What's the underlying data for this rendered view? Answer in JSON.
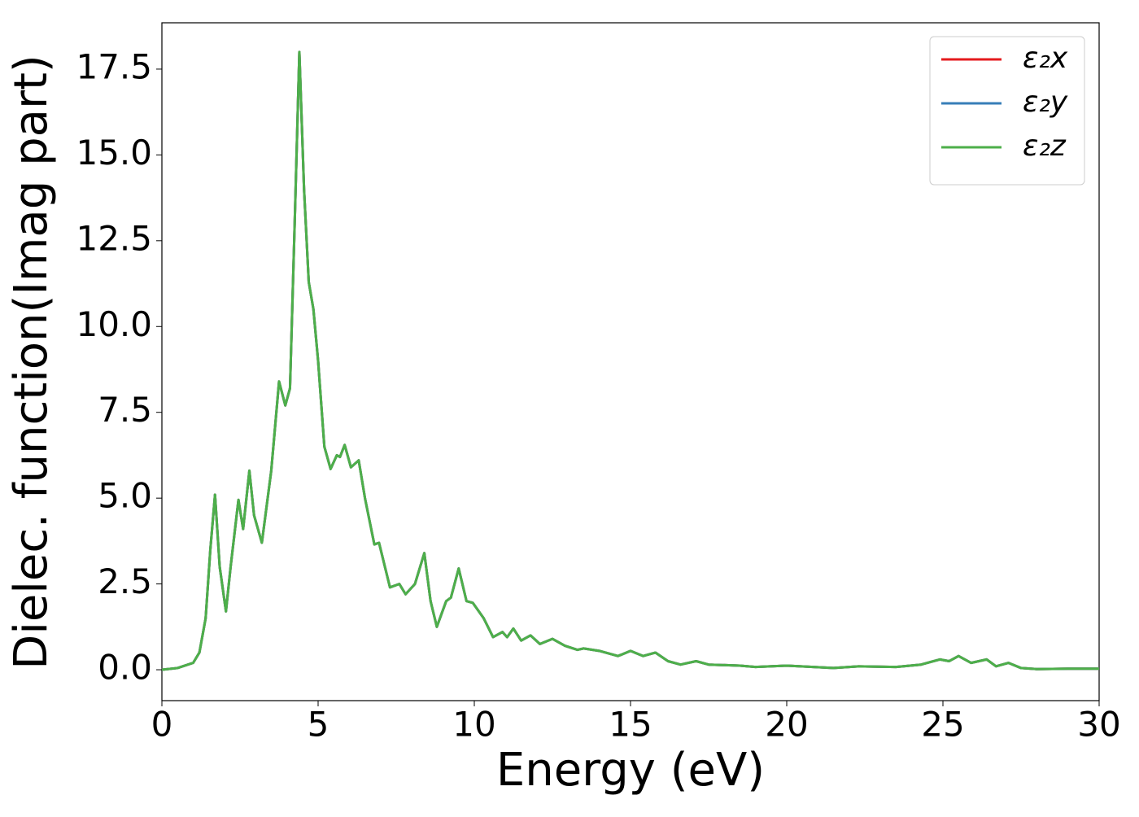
{
  "chart_data": {
    "type": "line",
    "xlabel": "Energy (eV)",
    "ylabel": "Dielec. function(Imag part)",
    "x": [
      0,
      0.5,
      1.0,
      1.2,
      1.4,
      1.55,
      1.7,
      1.85,
      2.05,
      2.2,
      2.45,
      2.6,
      2.8,
      2.95,
      3.2,
      3.5,
      3.75,
      3.95,
      4.1,
      4.25,
      4.4,
      4.55,
      4.7,
      4.85,
      5.0,
      5.2,
      5.4,
      5.6,
      5.7,
      5.85,
      6.05,
      6.3,
      6.5,
      6.8,
      6.95,
      7.3,
      7.6,
      7.8,
      8.1,
      8.4,
      8.6,
      8.8,
      9.1,
      9.25,
      9.5,
      9.75,
      9.95,
      10.3,
      10.6,
      10.9,
      11.05,
      11.25,
      11.5,
      11.8,
      12.1,
      12.5,
      12.9,
      13.3,
      13.5,
      14,
      14.6,
      15,
      15.4,
      15.8,
      16.2,
      16.6,
      17.1,
      17.5,
      18.5,
      19,
      20,
      21.5,
      22.3,
      23.5,
      24.3,
      24.9,
      25.2,
      25.5,
      25.9,
      26.4,
      26.7,
      27.1,
      27.5,
      28,
      29,
      30
    ],
    "series": [
      {
        "name": "ε₂x",
        "color": "#e41a1c",
        "values": [
          0,
          0.05,
          0.2,
          0.5,
          1.5,
          3.5,
          5.1,
          3.0,
          1.7,
          3.0,
          4.95,
          4.1,
          5.8,
          4.5,
          3.7,
          5.8,
          8.4,
          7.7,
          8.2,
          13,
          18.0,
          14,
          11.3,
          10.5,
          9.0,
          6.5,
          5.85,
          6.25,
          6.2,
          6.55,
          5.9,
          6.1,
          5.0,
          3.65,
          3.7,
          2.4,
          2.5,
          2.2,
          2.5,
          3.4,
          2.0,
          1.25,
          2.0,
          2.1,
          2.95,
          2.0,
          1.95,
          1.5,
          0.95,
          1.1,
          0.95,
          1.2,
          0.85,
          1.0,
          0.75,
          0.9,
          0.7,
          0.58,
          0.62,
          0.55,
          0.4,
          0.55,
          0.4,
          0.5,
          0.25,
          0.15,
          0.25,
          0.15,
          0.12,
          0.08,
          0.12,
          0.05,
          0.1,
          0.08,
          0.15,
          0.3,
          0.25,
          0.4,
          0.2,
          0.3,
          0.1,
          0.2,
          0.05,
          0.02,
          0.03,
          0.03
        ]
      },
      {
        "name": "ε₂y",
        "color": "#377eb8",
        "values": [
          0,
          0.05,
          0.2,
          0.5,
          1.5,
          3.5,
          5.1,
          3.0,
          1.7,
          3.0,
          4.95,
          4.1,
          5.8,
          4.5,
          3.7,
          5.8,
          8.4,
          7.7,
          8.2,
          13,
          18.0,
          14,
          11.3,
          10.5,
          9.0,
          6.5,
          5.85,
          6.25,
          6.2,
          6.55,
          5.9,
          6.1,
          5.0,
          3.65,
          3.7,
          2.4,
          2.5,
          2.2,
          2.5,
          3.4,
          2.0,
          1.25,
          2.0,
          2.1,
          2.95,
          2.0,
          1.95,
          1.5,
          0.95,
          1.1,
          0.95,
          1.2,
          0.85,
          1.0,
          0.75,
          0.9,
          0.7,
          0.58,
          0.62,
          0.55,
          0.4,
          0.55,
          0.4,
          0.5,
          0.25,
          0.15,
          0.25,
          0.15,
          0.12,
          0.08,
          0.12,
          0.05,
          0.1,
          0.08,
          0.15,
          0.3,
          0.25,
          0.4,
          0.2,
          0.3,
          0.1,
          0.2,
          0.05,
          0.02,
          0.03,
          0.03
        ]
      },
      {
        "name": "ε₂z",
        "color": "#4daf4a",
        "values": [
          0,
          0.05,
          0.2,
          0.5,
          1.5,
          3.5,
          5.1,
          3.0,
          1.7,
          3.0,
          4.95,
          4.1,
          5.8,
          4.5,
          3.7,
          5.8,
          8.4,
          7.7,
          8.2,
          13,
          18.0,
          14,
          11.3,
          10.5,
          9.0,
          6.5,
          5.85,
          6.25,
          6.2,
          6.55,
          5.9,
          6.1,
          5.0,
          3.65,
          3.7,
          2.4,
          2.5,
          2.2,
          2.5,
          3.4,
          2.0,
          1.25,
          2.0,
          2.1,
          2.95,
          2.0,
          1.95,
          1.5,
          0.95,
          1.1,
          0.95,
          1.2,
          0.85,
          1.0,
          0.75,
          0.9,
          0.7,
          0.58,
          0.62,
          0.55,
          0.4,
          0.55,
          0.4,
          0.5,
          0.25,
          0.15,
          0.25,
          0.15,
          0.12,
          0.08,
          0.12,
          0.05,
          0.1,
          0.08,
          0.15,
          0.3,
          0.25,
          0.4,
          0.2,
          0.3,
          0.1,
          0.2,
          0.05,
          0.02,
          0.03,
          0.03
        ]
      }
    ],
    "xlim": [
      0,
      30
    ],
    "xticks": [
      0,
      5,
      10,
      15,
      20,
      25,
      30
    ],
    "ylim": [
      -0.9,
      18.85
    ],
    "yticks": [
      {
        "value": 0,
        "label": "0.0"
      },
      2.5,
      {
        "value": 5,
        "label": "5.0"
      },
      7.5,
      {
        "value": 10,
        "label": "10.0"
      },
      12.5,
      {
        "value": 15,
        "label": "15.0"
      },
      17.5
    ],
    "legend": "upper right",
    "grid": false
  }
}
